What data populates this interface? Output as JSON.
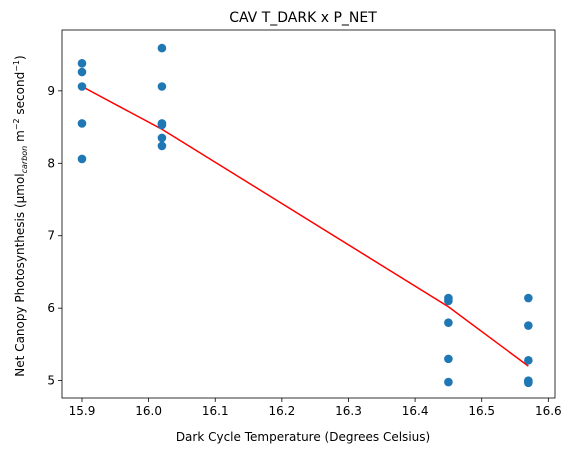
{
  "chart_data": {
    "type": "scatter",
    "title": "CAV T_DARK x P_NET",
    "xlabel": "Dark Cycle Temperature (Degrees Celsius)",
    "ylabel": {
      "prefix": "Net Canopy Photosynthesis (µmol",
      "sub": "carbon",
      "mid1": " m",
      "sup1": "−2",
      "mid2": " second",
      "sup2": "−1",
      "suffix": ")"
    },
    "xlim": [
      15.87,
      16.61
    ],
    "ylim": [
      4.76,
      9.84
    ],
    "xticks": [
      "15.9",
      "16.0",
      "16.1",
      "16.2",
      "16.3",
      "16.4",
      "16.5",
      "16.6"
    ],
    "yticks": [
      "5",
      "6",
      "7",
      "8",
      "9"
    ],
    "grid": false,
    "colors": {
      "points": "#1f77b4",
      "fit_line": "#ff0000"
    },
    "series": [
      {
        "kind": "points",
        "x": [
          15.9,
          15.9,
          15.9,
          15.9,
          15.9,
          16.02,
          16.02,
          16.02,
          16.02,
          16.02,
          16.02,
          16.45,
          16.45,
          16.45,
          16.45,
          16.45,
          16.57,
          16.57,
          16.57,
          16.57,
          16.57,
          16.57
        ],
        "y": [
          9.38,
          9.26,
          9.06,
          8.55,
          8.06,
          9.59,
          9.06,
          8.55,
          8.53,
          8.35,
          8.24,
          6.14,
          6.1,
          5.8,
          5.3,
          4.98,
          6.14,
          5.76,
          5.28,
          5.0,
          4.97,
          4.99
        ]
      },
      {
        "kind": "fit",
        "x": [
          15.9,
          16.02,
          16.45,
          16.57
        ],
        "y": [
          9.06,
          8.47,
          6.02,
          5.2
        ]
      }
    ]
  }
}
